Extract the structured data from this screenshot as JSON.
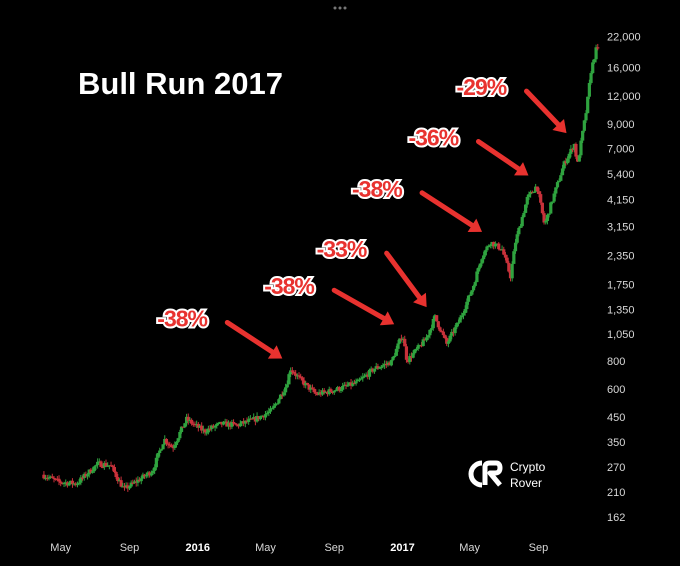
{
  "top_bar": {
    "dots": "•••"
  },
  "brand": {
    "line1": "Crypto",
    "line2": "Rover",
    "icon": "crypto-rover-logo"
  },
  "chart_data": {
    "type": "candlestick",
    "title": "Bull Run 2017",
    "xlabel": "",
    "ylabel": "",
    "y_scale": "log",
    "ylim": [
      145,
      24000
    ],
    "xlim": [
      "2015-03-25",
      "2017-12-20"
    ],
    "grid": false,
    "colors": {
      "up": "#2fa33f",
      "down": "#c8313a",
      "annotation": "#e8322f"
    },
    "y_ticks": [
      "22,000",
      "16,000",
      "12,000",
      "9,000",
      "7,000",
      "5,400",
      "4,150",
      "3,150",
      "2,350",
      "1,750",
      "1,350",
      "1,050",
      "800",
      "600",
      "450",
      "350",
      "270",
      "210",
      "162"
    ],
    "x_ticks": [
      {
        "label": "May",
        "date": "2015-05-01",
        "bold": false
      },
      {
        "label": "Sep",
        "date": "2015-09-01",
        "bold": false
      },
      {
        "label": "2016",
        "date": "2016-01-01",
        "bold": true
      },
      {
        "label": "May",
        "date": "2016-05-01",
        "bold": false
      },
      {
        "label": "Sep",
        "date": "2016-09-01",
        "bold": false
      },
      {
        "label": "2017",
        "date": "2017-01-01",
        "bold": true
      },
      {
        "label": "May",
        "date": "2017-05-01",
        "bold": false
      },
      {
        "label": "Sep",
        "date": "2017-09-01",
        "bold": false
      }
    ],
    "trend": [
      [
        "2015-04-01",
        250
      ],
      [
        "2015-05-01",
        232
      ],
      [
        "2015-06-01",
        228
      ],
      [
        "2015-07-10",
        280
      ],
      [
        "2015-08-01",
        275
      ],
      [
        "2015-08-25",
        215
      ],
      [
        "2015-09-15",
        232
      ],
      [
        "2015-10-15",
        260
      ],
      [
        "2015-11-05",
        360
      ],
      [
        "2015-11-20",
        330
      ],
      [
        "2015-12-15",
        440
      ],
      [
        "2016-01-15",
        390
      ],
      [
        "2016-02-15",
        420
      ],
      [
        "2016-03-15",
        415
      ],
      [
        "2016-04-15",
        440
      ],
      [
        "2016-05-15",
        480
      ],
      [
        "2016-06-10",
        620
      ],
      [
        "2016-06-18",
        740
      ],
      [
        "2016-07-05",
        660
      ],
      [
        "2016-08-02",
        570
      ],
      [
        "2016-08-20",
        580
      ],
      [
        "2016-09-15",
        605
      ],
      [
        "2016-10-15",
        640
      ],
      [
        "2016-11-15",
        740
      ],
      [
        "2016-12-15",
        790
      ],
      [
        "2017-01-04",
        1050
      ],
      [
        "2017-01-12",
        800
      ],
      [
        "2017-02-15",
        1000
      ],
      [
        "2017-03-03",
        1250
      ],
      [
        "2017-03-24",
        950
      ],
      [
        "2017-04-15",
        1200
      ],
      [
        "2017-05-10",
        1700
      ],
      [
        "2017-05-25",
        2300
      ],
      [
        "2017-06-10",
        2700
      ],
      [
        "2017-07-01",
        2500
      ],
      [
        "2017-07-16",
        1900
      ],
      [
        "2017-07-25",
        2700
      ],
      [
        "2017-08-15",
        4200
      ],
      [
        "2017-09-01",
        4800
      ],
      [
        "2017-09-15",
        3200
      ],
      [
        "2017-10-01",
        4300
      ],
      [
        "2017-10-20",
        6000
      ],
      [
        "2017-11-08",
        7400
      ],
      [
        "2017-11-12",
        5800
      ],
      [
        "2017-11-29",
        10500
      ],
      [
        "2017-12-07",
        15500
      ],
      [
        "2017-12-16",
        19200
      ]
    ],
    "annotations": [
      {
        "text": "-38%",
        "date": "2016-06-18",
        "price": 740
      },
      {
        "text": "-38%",
        "date": "2017-01-04",
        "price": 1050
      },
      {
        "text": "-33%",
        "date": "2017-03-03",
        "price": 1250
      },
      {
        "text": "-38%",
        "date": "2017-06-10",
        "price": 2700
      },
      {
        "text": "-36%",
        "date": "2017-09-01",
        "price": 4800
      },
      {
        "text": "-29%",
        "date": "2017-11-08",
        "price": 7400
      }
    ]
  }
}
